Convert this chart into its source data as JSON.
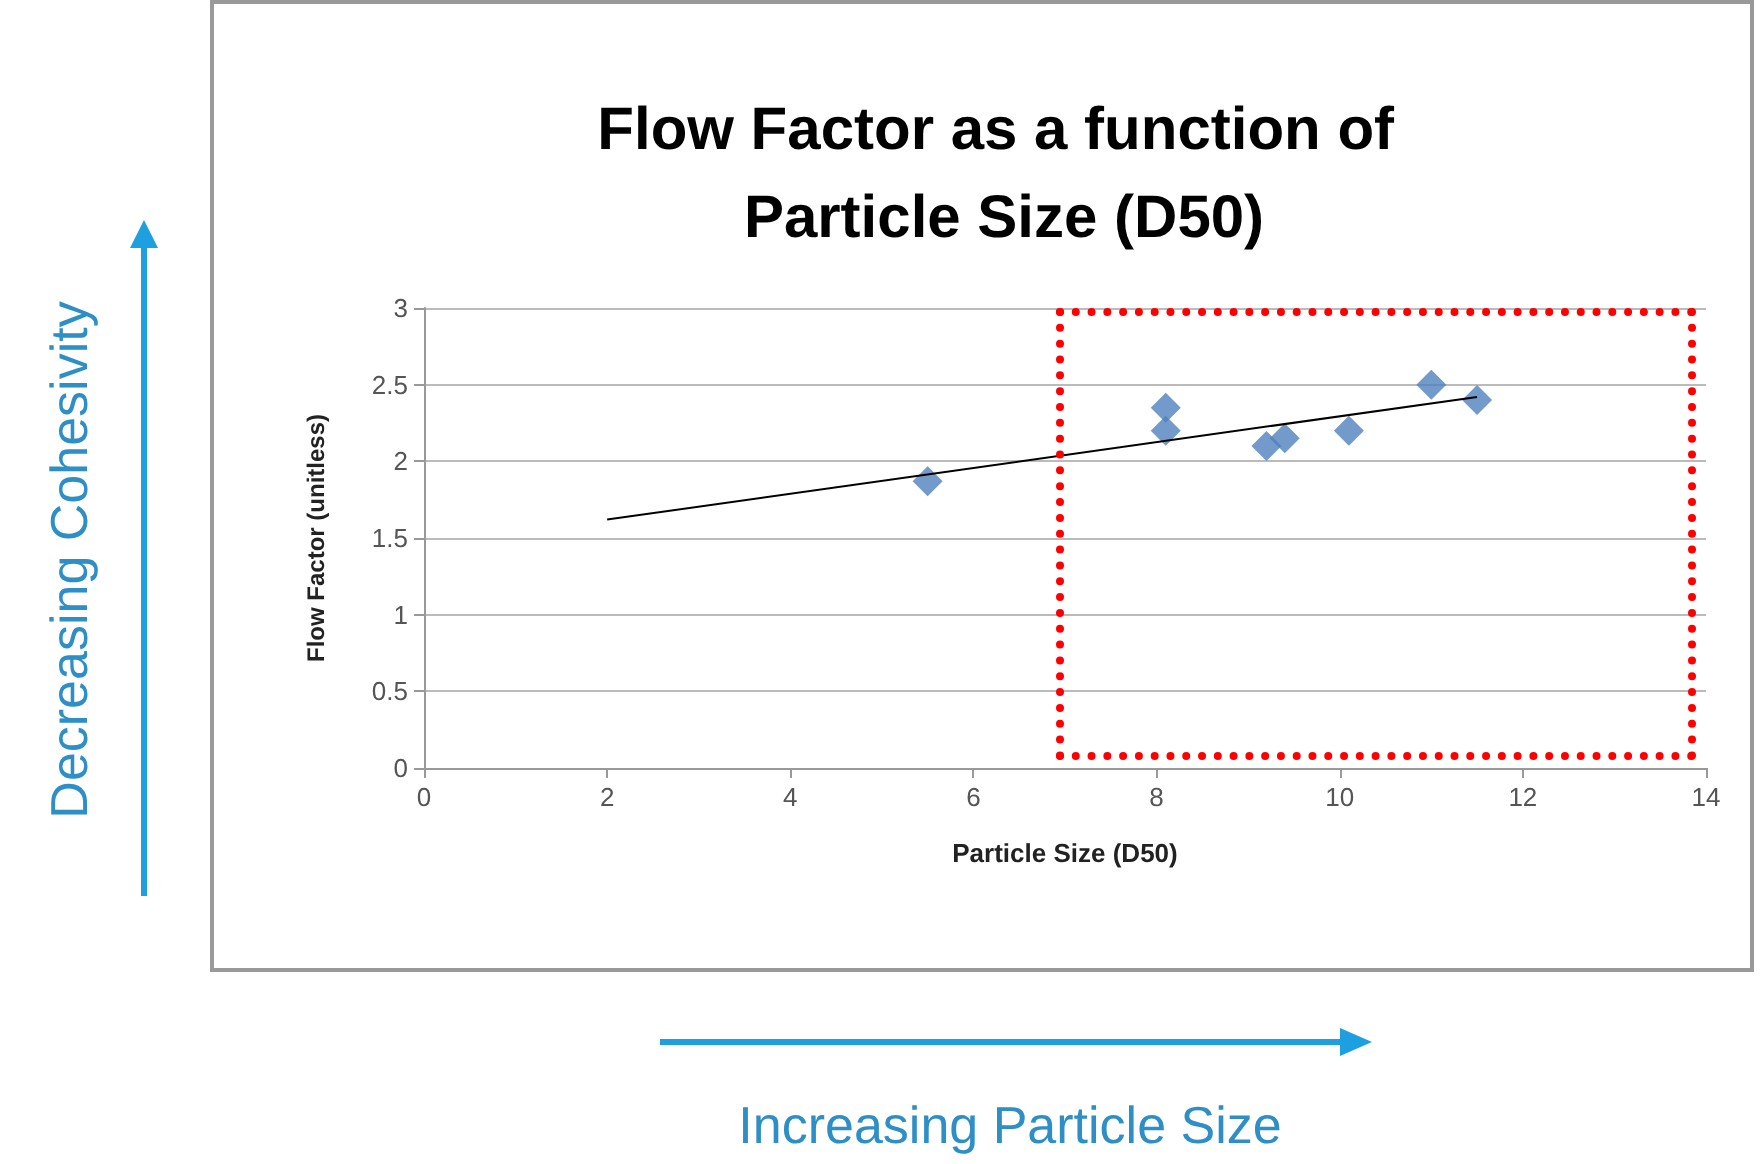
{
  "chart_data": {
    "type": "scatter",
    "title": "Flow Factor as a function of Particle Size (D50)",
    "xlabel": "Particle Size (D50)",
    "ylabel": "Flow Factor (unitless)",
    "annotations": [
      "Decreasing Cohesivity",
      "Increasing Particle Size"
    ],
    "series": [
      {
        "color": "#4f81bd",
        "marker": "diamond",
        "x": [
          5.5,
          8.1,
          8.1,
          9.2,
          9.4,
          10.1,
          11,
          11.5
        ],
        "values": [
          1.87,
          2.35,
          2.2,
          2.1,
          2.15,
          2.2,
          2.5,
          2.4
        ]
      },
      {
        "type": "line",
        "color": "#000000",
        "marker": "none",
        "line_style": "solid",
        "x": [
          2,
          11.5
        ],
        "values": [
          1.62,
          2.42
        ]
      }
    ],
    "xlim": [
      0,
      14
    ],
    "xticks": [
      0,
      2,
      4,
      6,
      8,
      10,
      12,
      14
    ],
    "ylim": [
      0,
      3
    ],
    "yticks": [
      0,
      0.5,
      1,
      1.5,
      2,
      2.5,
      3
    ],
    "grid": "y"
  }
}
